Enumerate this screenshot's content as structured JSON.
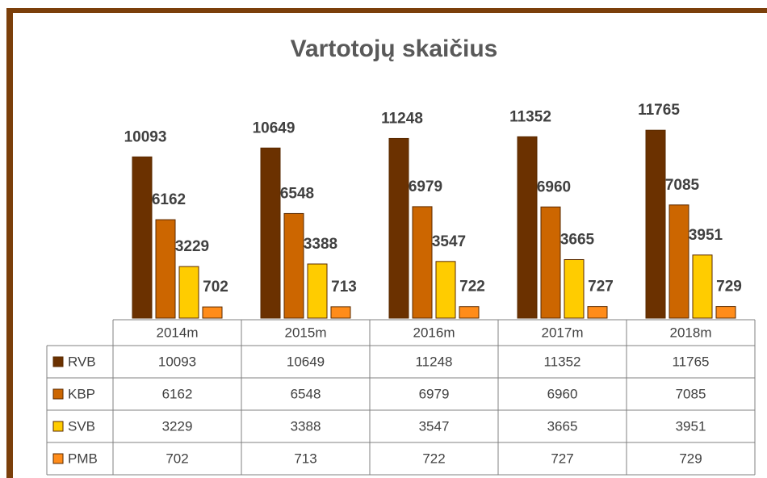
{
  "chart_data": {
    "type": "bar",
    "title": "Vartotojų skaičius",
    "categories": [
      "2014m",
      "2015m",
      "2016m",
      "2017m",
      "2018m"
    ],
    "series": [
      {
        "name": "RVB",
        "color": "#6b3100",
        "values": [
          10093,
          10649,
          11248,
          11352,
          11765
        ]
      },
      {
        "name": "KBP",
        "color": "#cc6600",
        "values": [
          6162,
          6548,
          6979,
          6960,
          7085
        ]
      },
      {
        "name": "SVB",
        "color": "#ffcc00",
        "values": [
          3229,
          3388,
          3547,
          3665,
          3951
        ]
      },
      {
        "name": "PMB",
        "color": "#ff8c1a",
        "values": [
          702,
          713,
          722,
          727,
          729
        ]
      }
    ],
    "ylim": [
      0,
      14000
    ]
  }
}
